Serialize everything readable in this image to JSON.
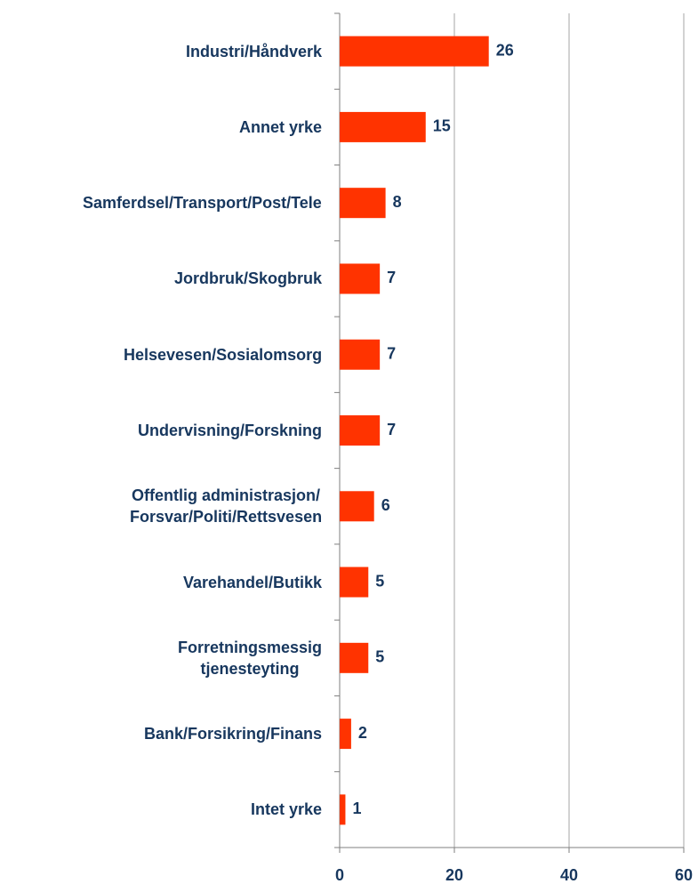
{
  "chart_data": {
    "type": "bar",
    "orientation": "horizontal",
    "categories": [
      "Industri/Håndverk",
      "Annet yrke",
      "Samferdsel/Transport/Post/Tele",
      "Jordbruk/Skogbruk",
      "Helsevesen/Sosialomsorg",
      "Undervisning/Forskning",
      "Offentlig administrasjon/\nForsvar/Politi/Rettsvesen",
      "Varehandel/Butikk",
      "Forretningsmessig\ntjenesteyting",
      "Bank/Forsikring/Finans",
      "Intet yrke"
    ],
    "values": [
      26,
      15,
      8,
      7,
      7,
      7,
      6,
      5,
      5,
      2,
      1
    ],
    "color": "#ff3300",
    "xlim": [
      0,
      60
    ],
    "xticks": [
      0,
      20,
      40,
      60
    ],
    "grid": true
  }
}
